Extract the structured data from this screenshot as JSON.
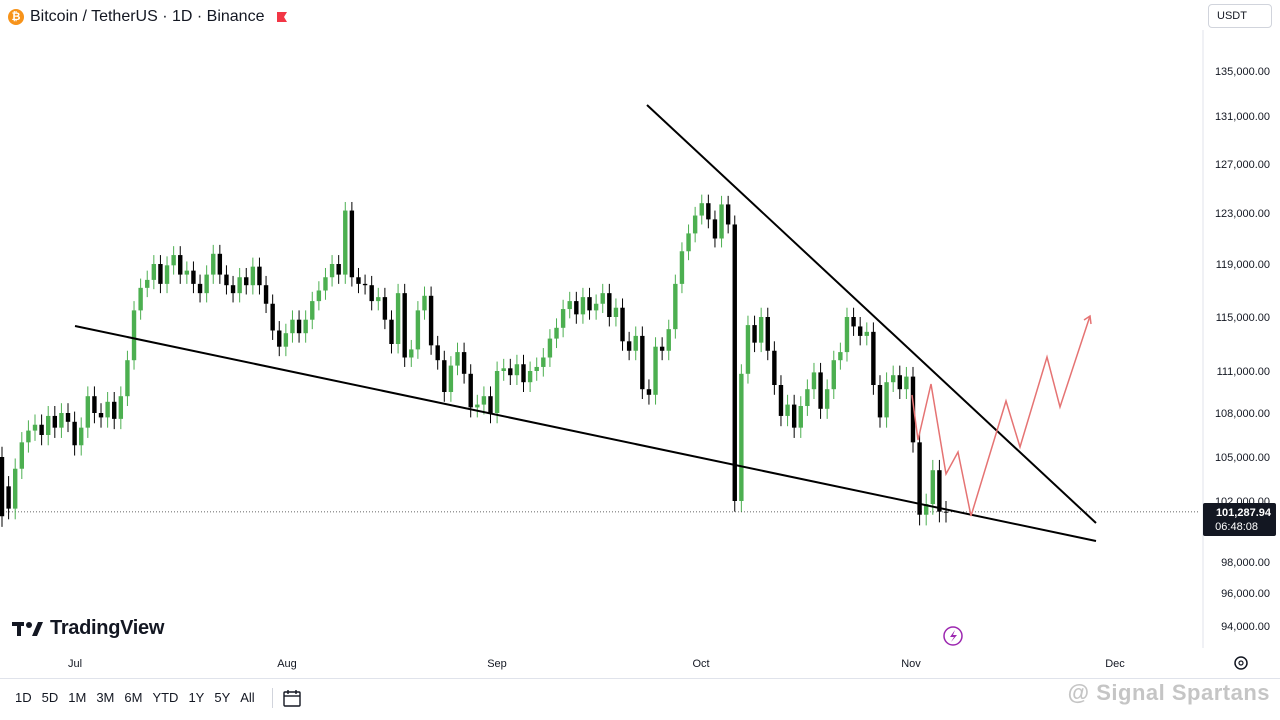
{
  "header": {
    "title": "Bitcoin / TetherUS · 1D · Binance",
    "btc_symbol": "₿",
    "currency": "USDT"
  },
  "price_label": {
    "value": "101,287.94",
    "countdown": "06:48:08"
  },
  "branding": {
    "logo_text": "TradingView",
    "watermark": "@ Signal Spartans"
  },
  "toolbar": {
    "timeframes": [
      "1D",
      "5D",
      "1M",
      "3M",
      "6M",
      "YTD",
      "1Y",
      "5Y",
      "All"
    ]
  },
  "colors": {
    "up": "#4caf50",
    "down": "#000000",
    "projection": "#e57373",
    "trendline": "#000000"
  },
  "chart_data": {
    "type": "candlestick",
    "y_ticks": [
      "135,000.00",
      "131,000.00",
      "127,000.00",
      "123,000.00",
      "119,000.00",
      "115,000.00",
      "111,000.00",
      "108,000.00",
      "105,000.00",
      "102,000.00",
      "98,000.00",
      "96,000.00",
      "94,000.00"
    ],
    "x_ticks": [
      "Jul",
      "Aug",
      "Sep",
      "Oct",
      "Nov",
      "Dec"
    ],
    "last_price": 101287.94,
    "ohlc_pairs": [
      [
        105000,
        101000
      ],
      [
        103000,
        101500
      ],
      [
        101500,
        104200
      ],
      [
        104200,
        106000
      ],
      [
        106000,
        106800
      ],
      [
        106800,
        107200
      ],
      [
        107200,
        106500
      ],
      [
        106500,
        107800
      ],
      [
        107800,
        107000
      ],
      [
        107000,
        108000
      ],
      [
        108000,
        107400
      ],
      [
        107400,
        105800
      ],
      [
        105800,
        107000
      ],
      [
        107000,
        109200
      ],
      [
        109200,
        108000
      ],
      [
        108000,
        107700
      ],
      [
        107700,
        108800
      ],
      [
        108800,
        107600
      ],
      [
        107600,
        109200
      ],
      [
        109200,
        111800
      ],
      [
        111800,
        115500
      ],
      [
        115500,
        117200
      ],
      [
        117200,
        117800
      ],
      [
        117800,
        119000
      ],
      [
        119000,
        117500
      ],
      [
        117500,
        118900
      ],
      [
        118900,
        119700
      ],
      [
        119700,
        118200
      ],
      [
        118200,
        118500
      ],
      [
        118500,
        117500
      ],
      [
        117500,
        116800
      ],
      [
        116800,
        118200
      ],
      [
        118200,
        119800
      ],
      [
        119800,
        118200
      ],
      [
        118200,
        117400
      ],
      [
        117400,
        116800
      ],
      [
        116800,
        118000
      ],
      [
        118000,
        117400
      ],
      [
        117400,
        118800
      ],
      [
        118800,
        117400
      ],
      [
        117400,
        116000
      ],
      [
        116000,
        114000
      ],
      [
        114000,
        112800
      ],
      [
        112800,
        113800
      ],
      [
        113800,
        114800
      ],
      [
        114800,
        113800
      ],
      [
        113800,
        114800
      ],
      [
        114800,
        116200
      ],
      [
        116200,
        117000
      ],
      [
        117000,
        118000
      ],
      [
        118000,
        119000
      ],
      [
        119000,
        118200
      ],
      [
        118200,
        123200
      ],
      [
        123200,
        118000
      ],
      [
        118000,
        117500
      ],
      [
        117500,
        117400
      ],
      [
        117400,
        116200
      ],
      [
        116200,
        116500
      ],
      [
        116500,
        114800
      ],
      [
        114800,
        113000
      ],
      [
        113000,
        116800
      ],
      [
        116800,
        112000
      ],
      [
        112000,
        112600
      ],
      [
        112600,
        115500
      ],
      [
        115500,
        116600
      ],
      [
        116600,
        112900
      ],
      [
        112900,
        111800
      ],
      [
        111800,
        109500
      ],
      [
        109500,
        111400
      ],
      [
        111400,
        112400
      ],
      [
        112400,
        110800
      ],
      [
        110800,
        108400
      ],
      [
        108400,
        108600
      ],
      [
        108600,
        109200
      ],
      [
        109200,
        108000
      ],
      [
        108000,
        111000
      ],
      [
        111000,
        111200
      ],
      [
        111200,
        110700
      ],
      [
        110700,
        111500
      ],
      [
        111500,
        110200
      ],
      [
        110200,
        111000
      ],
      [
        111000,
        111300
      ],
      [
        111300,
        112000
      ],
      [
        112000,
        113400
      ],
      [
        113400,
        114200
      ],
      [
        114200,
        115600
      ],
      [
        115600,
        116200
      ],
      [
        116200,
        115200
      ],
      [
        115200,
        116500
      ],
      [
        116500,
        115500
      ],
      [
        115500,
        116000
      ],
      [
        116000,
        116800
      ],
      [
        116800,
        115000
      ],
      [
        115000,
        115700
      ],
      [
        115700,
        113200
      ],
      [
        113200,
        112500
      ],
      [
        112500,
        113600
      ],
      [
        113600,
        109700
      ],
      [
        109700,
        109300
      ],
      [
        109300,
        112800
      ],
      [
        112800,
        112500
      ],
      [
        112500,
        114100
      ],
      [
        114100,
        117500
      ],
      [
        117500,
        120000
      ],
      [
        120000,
        121400
      ],
      [
        121400,
        122800
      ],
      [
        122800,
        123800
      ],
      [
        123800,
        122500
      ],
      [
        122500,
        121000
      ],
      [
        121000,
        123700
      ],
      [
        123700,
        122100
      ],
      [
        122100,
        102000
      ],
      [
        102000,
        110800
      ],
      [
        110800,
        114400
      ],
      [
        114400,
        113100
      ],
      [
        113100,
        115000
      ],
      [
        115000,
        112500
      ],
      [
        112500,
        110000
      ],
      [
        110000,
        107800
      ],
      [
        107800,
        108600
      ],
      [
        108600,
        107000
      ],
      [
        107000,
        108500
      ],
      [
        108500,
        109700
      ],
      [
        109700,
        110900
      ],
      [
        110900,
        108300
      ],
      [
        108300,
        109700
      ],
      [
        109700,
        111800
      ],
      [
        111800,
        112400
      ],
      [
        112400,
        115000
      ],
      [
        115000,
        114300
      ],
      [
        114300,
        113600
      ],
      [
        113600,
        113900
      ],
      [
        113900,
        110000
      ],
      [
        110000,
        107700
      ],
      [
        107700,
        110200
      ],
      [
        110200,
        110700
      ],
      [
        110700,
        109700
      ],
      [
        109700,
        110600
      ],
      [
        110600,
        106000
      ],
      [
        106000,
        101100
      ],
      [
        101100,
        101800
      ],
      [
        101800,
        104100
      ],
      [
        104100,
        101300
      ],
      [
        101300,
        101288
      ]
    ]
  }
}
